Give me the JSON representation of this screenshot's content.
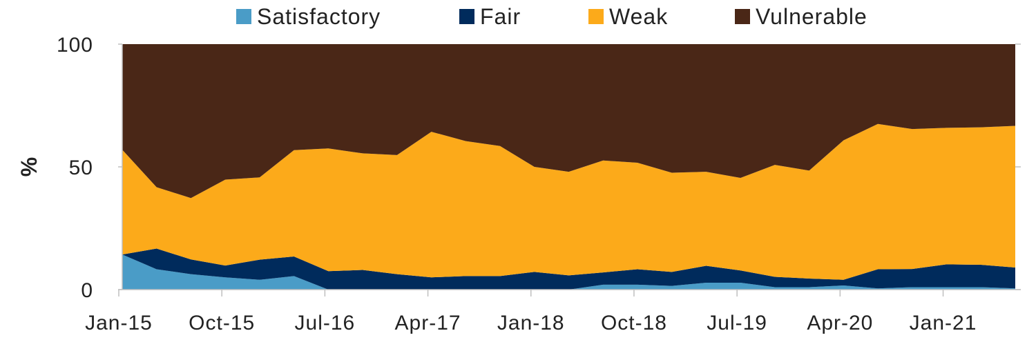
{
  "chart_data": {
    "type": "area",
    "stacked": true,
    "ylabel": "%",
    "ylim": [
      0,
      100
    ],
    "yticks": [
      0,
      50,
      100
    ],
    "grid": false,
    "legend_position": "top",
    "x": [
      "Jan-15",
      "Apr-15",
      "Jul-15",
      "Oct-15",
      "Jan-16",
      "Apr-16",
      "Jul-16",
      "Oct-16",
      "Jan-17",
      "Apr-17",
      "Jul-17",
      "Oct-17",
      "Jan-18",
      "Apr-18",
      "Jul-18",
      "Oct-18",
      "Jan-19",
      "Apr-19",
      "Jul-19",
      "Oct-19",
      "Jan-20",
      "Apr-20",
      "Jul-20",
      "Oct-20",
      "Jan-21",
      "Apr-21",
      "Jul-21"
    ],
    "xtick_labels": [
      "Jan-15",
      "Oct-15",
      "Jul-16",
      "Apr-17",
      "Jan-18",
      "Oct-18",
      "Jul-19",
      "Apr-20",
      "Jan-21"
    ],
    "series": [
      {
        "name": "Satisfactory",
        "color": "#4a9cc7",
        "values": [
          14.3,
          8.3,
          6.3,
          5,
          4,
          5.5,
          0,
          0,
          0,
          0,
          0,
          0,
          0,
          0,
          2,
          2,
          1.5,
          2.8,
          2.8,
          1,
          1,
          1.7,
          0.5,
          1,
          1,
          1,
          0.5
        ]
      },
      {
        "name": "Fair",
        "color": "#002b5c",
        "values": [
          0,
          8.4,
          6,
          4.8,
          8.2,
          8,
          7.5,
          8,
          6.3,
          5,
          5.5,
          5.5,
          7.2,
          5.8,
          5,
          6.3,
          5.7,
          6.9,
          5,
          4.2,
          3.5,
          2.3,
          7.8,
          7.4,
          9.3,
          9.1,
          8.5
        ]
      },
      {
        "name": "Weak",
        "color": "#fcaa1a",
        "values": [
          42.7,
          25,
          25,
          35,
          33.5,
          43.3,
          50,
          47.5,
          48.5,
          59.3,
          55,
          53,
          42.8,
          42.2,
          45.6,
          43.4,
          40.4,
          38.3,
          37.7,
          45.6,
          44,
          56.8,
          59.2,
          57,
          55.6,
          56,
          57.7
        ]
      },
      {
        "name": "Vulnerable",
        "color": "#4a2717",
        "values": [
          43,
          58.3,
          62.7,
          55.2,
          54.3,
          43.2,
          42.5,
          44.5,
          45.2,
          35.7,
          39.5,
          41.5,
          50,
          52,
          47.4,
          48.3,
          52.4,
          52,
          54.5,
          49.2,
          51.5,
          39.2,
          32.5,
          34.6,
          34.1,
          33.9,
          33.3
        ]
      }
    ]
  }
}
